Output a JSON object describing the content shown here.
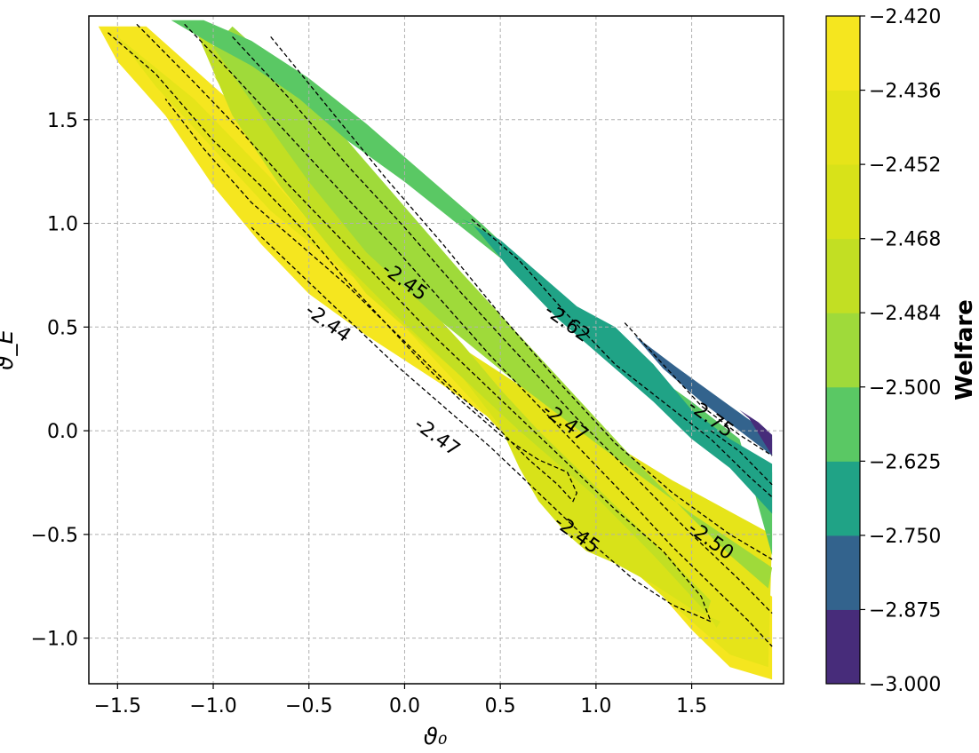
{
  "chart_data": {
    "type": "contour",
    "xlabel": "ϑ₀",
    "ylabel": "ϑ_E",
    "xlim": [
      -1.65,
      1.98
    ],
    "ylim": [
      -1.22,
      2.0
    ],
    "xticks": [
      -1.5,
      -1.0,
      -0.5,
      0.0,
      0.5,
      1.0,
      1.5
    ],
    "xtick_labels": [
      "−1.5",
      "−1.0",
      "−0.5",
      "0.0",
      "0.5",
      "1.0",
      "1.5"
    ],
    "yticks": [
      -1.0,
      -0.5,
      0.0,
      0.5,
      1.0,
      1.5
    ],
    "ytick_labels": [
      "−1.0",
      "−0.5",
      "0.0",
      "0.5",
      "1.0",
      "1.5"
    ],
    "grid": true,
    "colorbar": {
      "label": "Welfare",
      "boundaries": [
        -3.0,
        -2.875,
        -2.75,
        -2.625,
        -2.5,
        -2.484,
        -2.468,
        -2.452,
        -2.436,
        -2.42
      ],
      "tick_labels": [
        "−3.000",
        "−2.875",
        "−2.750",
        "−2.625",
        "−2.500",
        "−2.484",
        "−2.468",
        "−2.452",
        "−2.436",
        "−2.420"
      ],
      "colors": [
        "#472c7a",
        "#33638d",
        "#20a386",
        "#5ac864",
        "#9fda3a",
        "#c2df23",
        "#d8e219",
        "#e6e419",
        "#f5e61f"
      ]
    },
    "contour_labels": [
      {
        "text": "-2.44",
        "x": -0.4,
        "y": 0.52
      },
      {
        "text": "-2.45",
        "x": 0.0,
        "y": 0.72
      },
      {
        "text": "-2.45",
        "x": 0.9,
        "y": -0.5
      },
      {
        "text": "-2.47",
        "x": 0.17,
        "y": -0.03
      },
      {
        "text": "-2.47",
        "x": 0.84,
        "y": 0.04
      },
      {
        "text": "-2.50",
        "x": 1.6,
        "y": -0.53
      },
      {
        "text": "-2.62",
        "x": 0.85,
        "y": 0.52
      },
      {
        "text": "-2.75",
        "x": 1.6,
        "y": 0.06
      }
    ],
    "regions": [
      {
        "level": -2.42,
        "x": [
          -1.55,
          -1.35,
          -0.9,
          -0.2,
          0.2,
          0.6,
          0.9,
          1.2,
          1.5,
          1.7,
          1.92,
          1.92,
          1.6,
          1.1,
          0.6,
          0.2,
          -0.2,
          -0.5,
          -0.75,
          -1.0,
          -1.25,
          -1.5,
          -1.6
        ],
        "y": [
          1.95,
          1.95,
          1.58,
          0.88,
          0.46,
          0.04,
          -0.3,
          -0.64,
          -0.96,
          -1.14,
          -1.2,
          -0.8,
          -0.6,
          -0.34,
          -0.04,
          0.22,
          0.46,
          0.66,
          0.9,
          1.18,
          1.52,
          1.78,
          1.95
        ]
      },
      {
        "level": -2.436,
        "x": [
          -1.5,
          -1.1,
          -0.7,
          -0.3,
          0.0,
          0.3,
          0.6,
          0.9,
          1.2,
          1.5,
          1.7,
          1.9,
          1.92,
          1.4,
          0.8,
          0.2,
          -0.3,
          -0.7,
          -1.0,
          -1.3,
          -1.5
        ],
        "y": [
          1.9,
          1.6,
          1.22,
          0.8,
          0.5,
          0.2,
          -0.1,
          -0.4,
          -0.68,
          -0.92,
          -1.08,
          -1.14,
          -0.5,
          -0.24,
          0.1,
          0.46,
          0.76,
          1.06,
          1.36,
          1.66,
          1.9
        ]
      },
      {
        "level": -2.452,
        "x": [
          -1.25,
          -1.0,
          -0.7,
          -0.35,
          0.0,
          0.3,
          0.5,
          0.6,
          0.7,
          0.85,
          0.95,
          1.1,
          1.3,
          1.5,
          1.65,
          1.63,
          1.4,
          1.0,
          0.6,
          0.2,
          -0.2,
          -0.5,
          -0.8,
          -1.0
        ],
        "y": [
          1.95,
          1.72,
          1.38,
          0.98,
          0.6,
          0.26,
          0.02,
          -0.18,
          -0.34,
          -0.5,
          -0.58,
          -0.64,
          -0.74,
          -0.86,
          -0.92,
          -0.95,
          -0.62,
          -0.32,
          0.02,
          0.34,
          0.66,
          1.02,
          1.4,
          1.72
        ]
      },
      {
        "level": -2.468,
        "x": [
          -1.1,
          -0.85,
          -0.55,
          -0.3,
          -0.08,
          0.1,
          0.3,
          0.5,
          0.7,
          0.9,
          1.1,
          1.3,
          1.45,
          1.6,
          1.58,
          1.3,
          1.0,
          0.6,
          0.25,
          -0.05,
          -0.35,
          -0.65,
          -0.9
        ],
        "y": [
          1.95,
          1.72,
          1.38,
          1.1,
          0.82,
          0.62,
          0.42,
          0.2,
          0.0,
          -0.18,
          -0.36,
          -0.54,
          -0.68,
          -0.82,
          -0.88,
          -0.6,
          -0.32,
          0.0,
          0.3,
          0.56,
          0.84,
          1.18,
          1.52
        ]
      },
      {
        "level": -2.484,
        "x": [
          -0.9,
          -0.6,
          -0.3,
          0.0,
          0.3,
          0.6,
          0.9,
          1.2,
          1.5,
          1.7,
          1.9,
          1.92,
          1.5,
          1.0,
          0.6,
          0.2,
          -0.2,
          -0.5,
          -0.75,
          -1.0
        ],
        "y": [
          1.95,
          1.7,
          1.4,
          1.08,
          0.76,
          0.46,
          0.16,
          -0.14,
          -0.42,
          -0.6,
          -0.76,
          -0.66,
          -0.4,
          -0.06,
          0.22,
          0.52,
          0.86,
          1.2,
          1.52,
          1.85
        ]
      },
      {
        "level": -2.5,
        "x": [
          -1.22,
          -1.0,
          -0.8,
          -0.55,
          -0.3,
          0.0,
          0.3,
          0.6,
          0.9,
          1.2,
          1.5,
          1.75,
          1.92,
          1.92,
          1.6,
          1.3,
          1.0,
          0.7,
          0.4,
          0.1,
          -0.2,
          -0.5,
          -0.8,
          -1.05
        ],
        "y": [
          1.98,
          1.86,
          1.76,
          1.6,
          1.4,
          1.2,
          0.98,
          0.76,
          0.54,
          0.34,
          0.14,
          -0.04,
          -0.6,
          -0.2,
          0.0,
          0.26,
          0.52,
          0.74,
          1.0,
          1.24,
          1.48,
          1.7,
          1.88,
          1.98
        ]
      },
      {
        "level": -2.625,
        "x": [
          0.3,
          0.5,
          0.7,
          0.9,
          1.1,
          1.3,
          1.5,
          1.7,
          1.92,
          1.92,
          1.7,
          1.5,
          1.3,
          1.05,
          0.8,
          0.55,
          0.35
        ],
        "y": [
          1.02,
          0.92,
          0.76,
          0.6,
          0.5,
          0.32,
          0.1,
          -0.04,
          -0.16,
          -0.4,
          -0.18,
          -0.04,
          0.14,
          0.34,
          0.54,
          0.78,
          1.0
        ]
      },
      {
        "level": -2.75,
        "x": [
          1.2,
          1.4,
          1.55,
          1.7,
          1.85,
          1.92,
          1.92,
          1.75,
          1.55,
          1.35,
          1.2
        ],
        "y": [
          0.46,
          0.32,
          0.22,
          0.12,
          0.02,
          -0.04,
          -0.12,
          0.0,
          0.14,
          0.3,
          0.46
        ]
      },
      {
        "level": -2.875,
        "x": [
          1.75,
          1.85,
          1.92,
          1.92,
          1.8
        ],
        "y": [
          0.1,
          0.04,
          -0.02,
          -0.12,
          0.06
        ]
      }
    ],
    "contours": [
      {
        "x": [
          -1.55,
          -1.3,
          -1.0,
          -0.75,
          -0.5,
          -0.3,
          -0.1,
          0.1,
          0.3,
          0.5,
          0.7,
          0.85,
          0.9,
          0.88,
          0.8,
          0.65,
          0.5,
          0.3,
          0.1,
          -0.1,
          -0.3,
          -0.55,
          -0.8,
          -1.05,
          -1.25
        ],
        "y": [
          1.92,
          1.72,
          1.4,
          1.18,
          0.94,
          0.72,
          0.52,
          0.32,
          0.14,
          -0.02,
          -0.14,
          -0.2,
          -0.3,
          -0.34,
          -0.26,
          -0.14,
          0.0,
          0.16,
          0.34,
          0.52,
          0.7,
          0.9,
          1.1,
          1.36,
          1.6
        ]
      },
      {
        "x": [
          -1.4,
          -1.1,
          -0.85,
          -0.6,
          -0.35,
          -0.1,
          0.15,
          0.4,
          0.65,
          0.9,
          1.1,
          1.35,
          1.55,
          1.6,
          1.55,
          1.4,
          1.2,
          0.95,
          0.7,
          0.45,
          0.2,
          -0.05,
          -0.3,
          -0.55,
          -0.8
        ],
        "y": [
          1.96,
          1.68,
          1.44,
          1.18,
          0.94,
          0.7,
          0.46,
          0.24,
          0.02,
          -0.2,
          -0.38,
          -0.58,
          -0.8,
          -0.92,
          -0.9,
          -0.84,
          -0.72,
          -0.52,
          -0.3,
          -0.08,
          0.12,
          0.32,
          0.54,
          0.76,
          0.98
        ]
      },
      {
        "x": [
          -1.15,
          -0.9,
          -0.6,
          -0.3,
          -0.05,
          0.2,
          0.45,
          0.7,
          0.95,
          1.2,
          1.4,
          1.6,
          1.8,
          1.92
        ],
        "y": [
          1.96,
          1.72,
          1.42,
          1.12,
          0.88,
          0.62,
          0.36,
          0.12,
          -0.12,
          -0.36,
          -0.56,
          -0.74,
          -0.92,
          -1.04
        ]
      },
      {
        "x": [
          -0.9,
          -0.6,
          -0.3,
          0.0,
          0.3,
          0.6,
          0.9,
          1.2,
          1.5,
          1.75,
          1.92
        ],
        "y": [
          1.9,
          1.6,
          1.28,
          0.98,
          0.66,
          0.36,
          0.06,
          -0.22,
          -0.5,
          -0.72,
          -0.88
        ]
      },
      {
        "x": [
          -0.7,
          -0.4,
          -0.1,
          0.2,
          0.5,
          0.8,
          1.1,
          1.4,
          1.7,
          1.92
        ],
        "y": [
          1.9,
          1.56,
          1.22,
          0.9,
          0.56,
          0.24,
          -0.06,
          -0.3,
          -0.5,
          -0.62
        ]
      },
      {
        "x": [
          0.35,
          0.6,
          0.85,
          1.1,
          1.35,
          1.6,
          1.8,
          1.92
        ],
        "y": [
          1.02,
          0.82,
          0.56,
          0.32,
          0.14,
          -0.04,
          -0.22,
          -0.32
        ]
      },
      {
        "x": [
          1.15,
          1.35,
          1.55,
          1.75,
          1.92
        ],
        "y": [
          0.52,
          0.32,
          0.12,
          -0.02,
          -0.12
        ]
      },
      {
        "x": [
          1.6,
          1.75,
          1.92
        ],
        "y": [
          0.0,
          -0.1,
          -0.26
        ]
      }
    ]
  }
}
